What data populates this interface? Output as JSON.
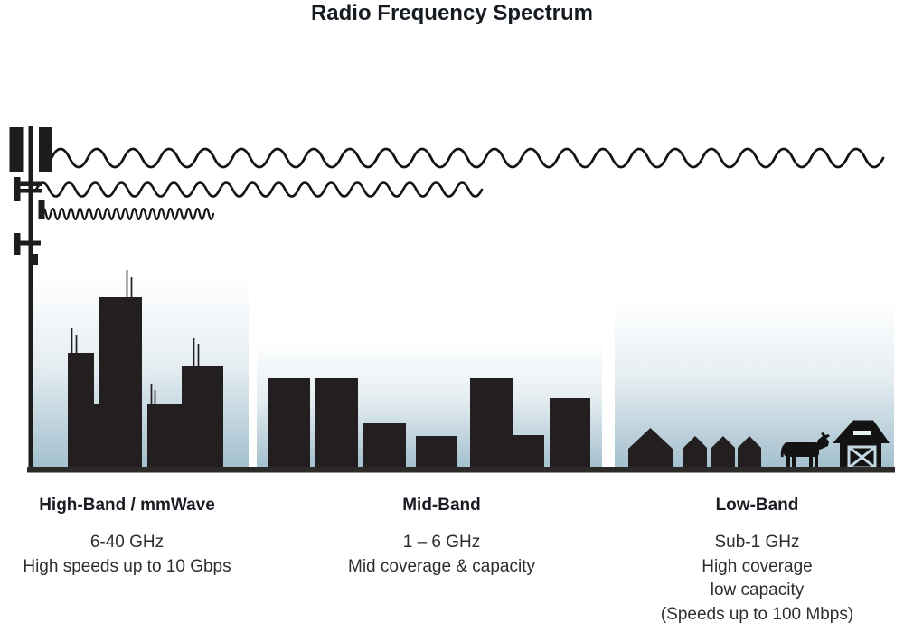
{
  "title": "Radio Frequency Spectrum",
  "bands": [
    {
      "id": "high-band",
      "name": "High-Band / mmWave",
      "frequency": "6-40 GHz",
      "details": [
        "High speeds up to 10 Gbps"
      ]
    },
    {
      "id": "mid-band",
      "name": "Mid-Band",
      "frequency": "1 – 6 GHz",
      "details": [
        "Mid coverage & capacity"
      ]
    },
    {
      "id": "low-band",
      "name": "Low-Band",
      "frequency": "Sub-1 GHz",
      "details": [
        "High coverage",
        "low capacity",
        "(Speeds up to 100 Mbps)"
      ]
    }
  ],
  "icons": {
    "tower": "cell-tower-icon",
    "waves": [
      "wave-low-frequency-long",
      "wave-mid-frequency-medium",
      "wave-high-frequency-short"
    ],
    "high_band_scene": "dense-city-skyline",
    "mid_band_scene": "mid-city-skyline",
    "low_band_scene": "rural-houses-cow-barn"
  },
  "colors": {
    "silhouette": "#231f20",
    "sky_bottom": "#a2bfcd",
    "text": "#2e2e2e",
    "heading": "#191d23"
  }
}
